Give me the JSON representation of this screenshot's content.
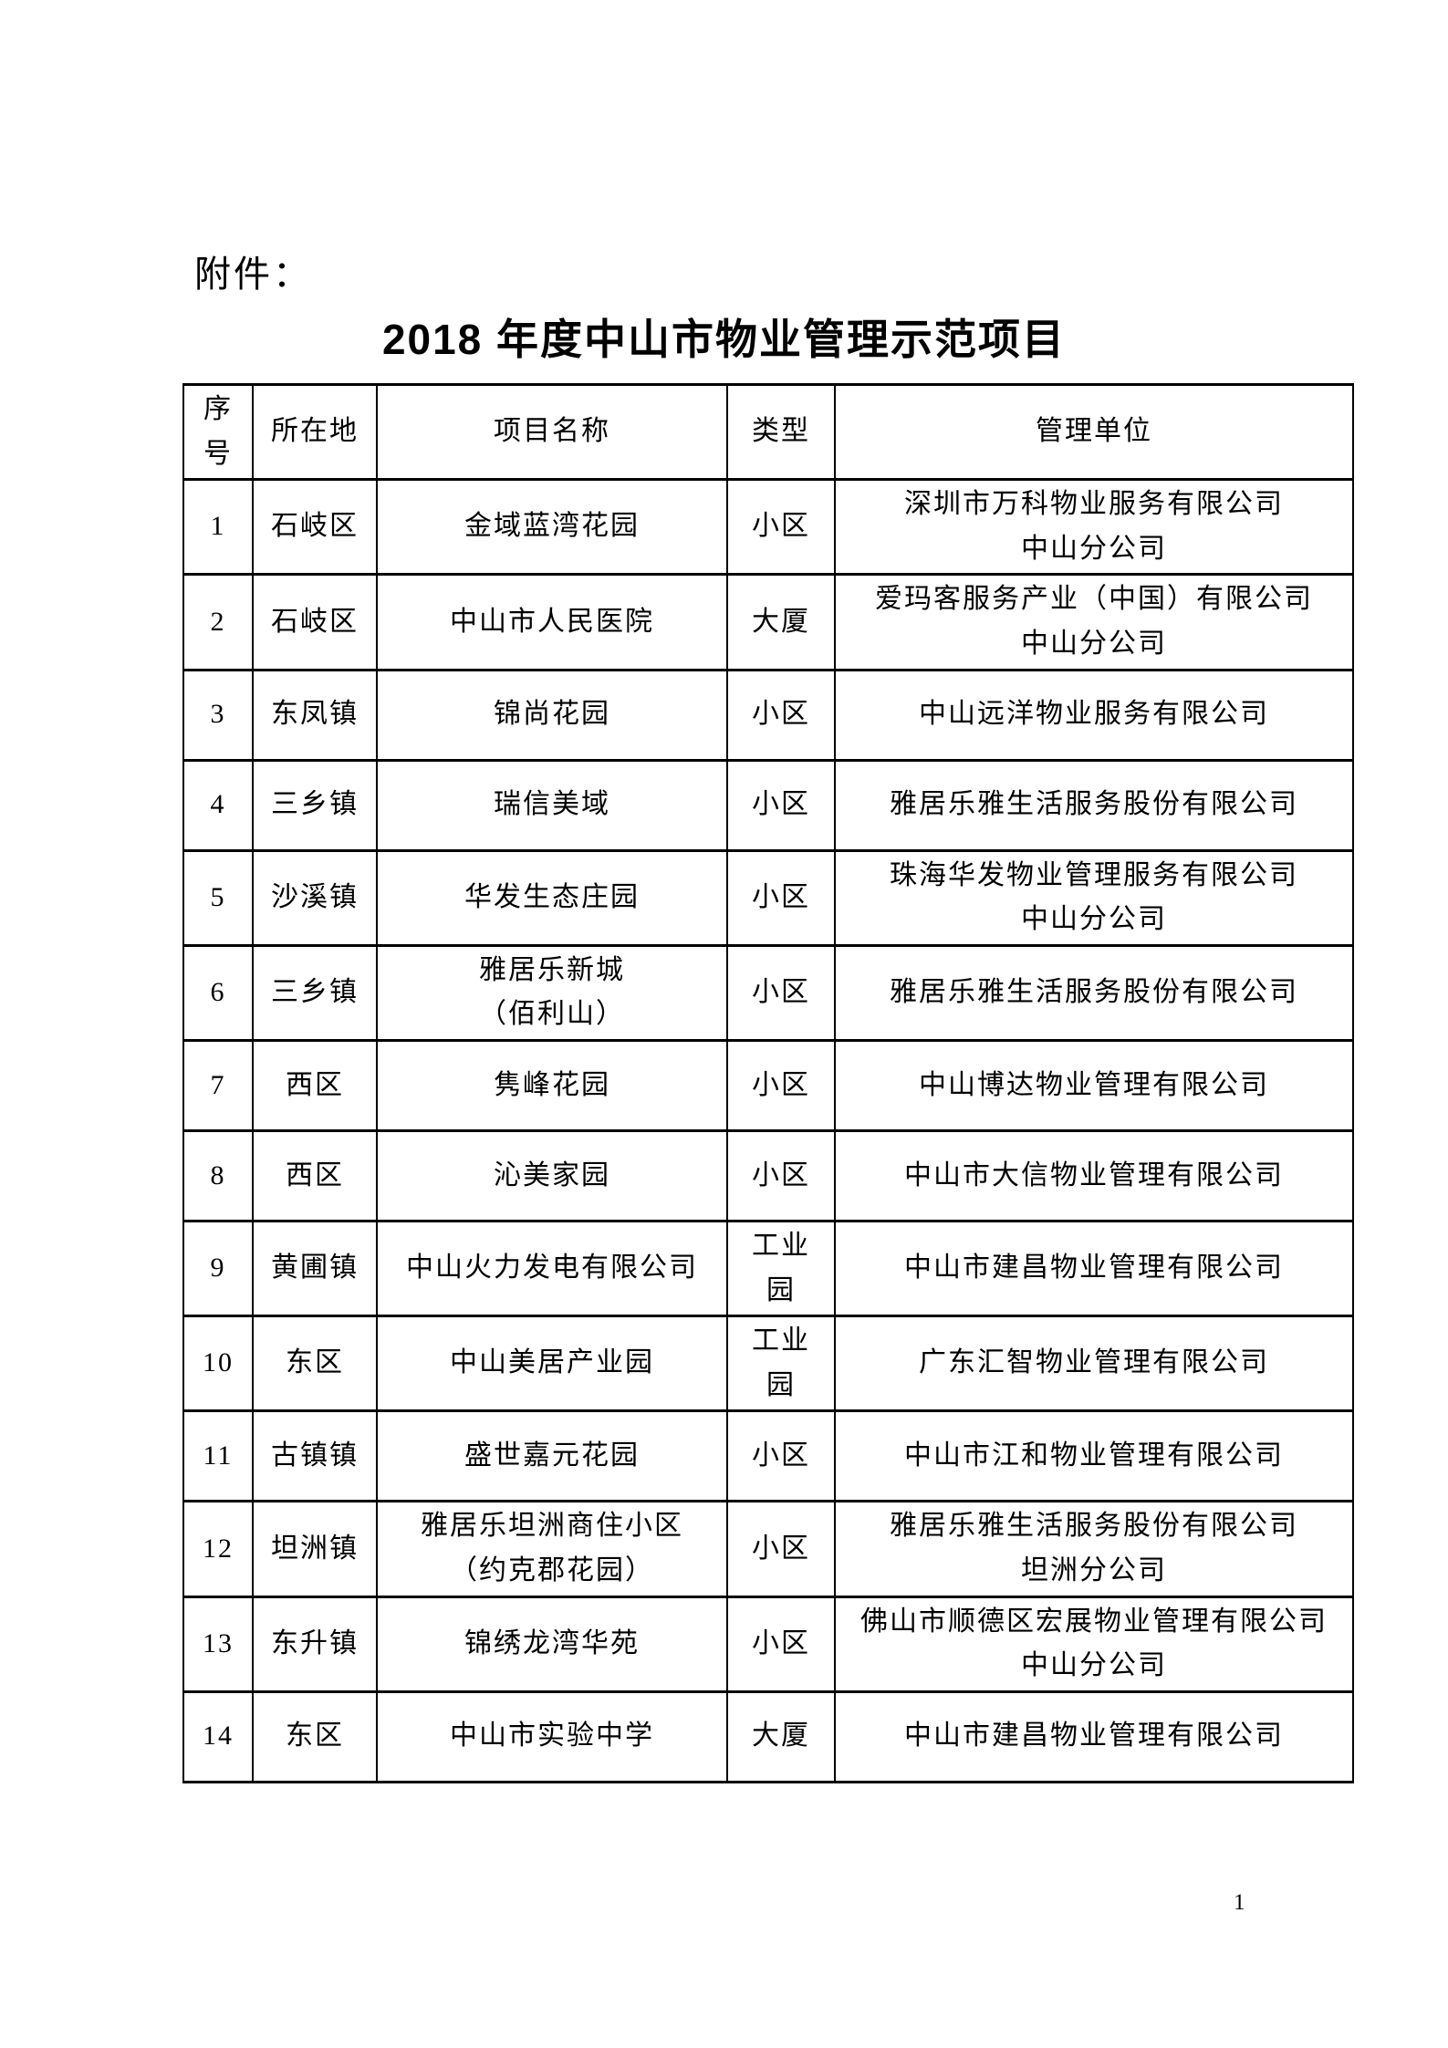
{
  "page": {
    "attachment_label": "附件：",
    "title": "2018 年度中山市物业管理示范项目",
    "page_number": "1"
  },
  "table": {
    "headers": [
      "序\n号",
      "所在地",
      "项目名称",
      "类型",
      "管理单位"
    ],
    "rows": [
      {
        "no": "1",
        "location": "石岐区",
        "project": "金域蓝湾花园",
        "type": "小区",
        "manager": "深圳市万科物业服务有限公司\n中山分公司"
      },
      {
        "no": "2",
        "location": "石岐区",
        "project": "中山市人民医院",
        "type": "大厦",
        "manager": "爱玛客服务产业（中国）有限公司\n中山分公司"
      },
      {
        "no": "3",
        "location": "东凤镇",
        "project": "锦尚花园",
        "type": "小区",
        "manager": "中山远洋物业服务有限公司"
      },
      {
        "no": "4",
        "location": "三乡镇",
        "project": "瑞信美域",
        "type": "小区",
        "manager": "雅居乐雅生活服务股份有限公司"
      },
      {
        "no": "5",
        "location": "沙溪镇",
        "project": "华发生态庄园",
        "type": "小区",
        "manager": "珠海华发物业管理服务有限公司\n中山分公司"
      },
      {
        "no": "6",
        "location": "三乡镇",
        "project": "雅居乐新城\n（佰利山）",
        "type": "小区",
        "manager": "雅居乐雅生活服务股份有限公司"
      },
      {
        "no": "7",
        "location": "西区",
        "project": "隽峰花园",
        "type": "小区",
        "manager": "中山博达物业管理有限公司"
      },
      {
        "no": "8",
        "location": "西区",
        "project": "沁美家园",
        "type": "小区",
        "manager": "中山市大信物业管理有限公司"
      },
      {
        "no": "9",
        "location": "黄圃镇",
        "project": "中山火力发电有限公司",
        "type": "工业\n园",
        "manager": "中山市建昌物业管理有限公司"
      },
      {
        "no": "10",
        "location": "东区",
        "project": "中山美居产业园",
        "type": "工业\n园",
        "manager": "广东汇智物业管理有限公司"
      },
      {
        "no": "11",
        "location": "古镇镇",
        "project": "盛世嘉元花园",
        "type": "小区",
        "manager": "中山市江和物业管理有限公司"
      },
      {
        "no": "12",
        "location": "坦洲镇",
        "project": "雅居乐坦洲商住小区\n（约克郡花园）",
        "type": "小区",
        "manager": "雅居乐雅生活服务股份有限公司\n坦洲分公司"
      },
      {
        "no": "13",
        "location": "东升镇",
        "project": "锦绣龙湾华苑",
        "type": "小区",
        "manager": "佛山市顺德区宏展物业管理有限公司\n中山分公司"
      },
      {
        "no": "14",
        "location": "东区",
        "project": "中山市实验中学",
        "type": "大厦",
        "manager": "中山市建昌物业管理有限公司"
      }
    ]
  }
}
